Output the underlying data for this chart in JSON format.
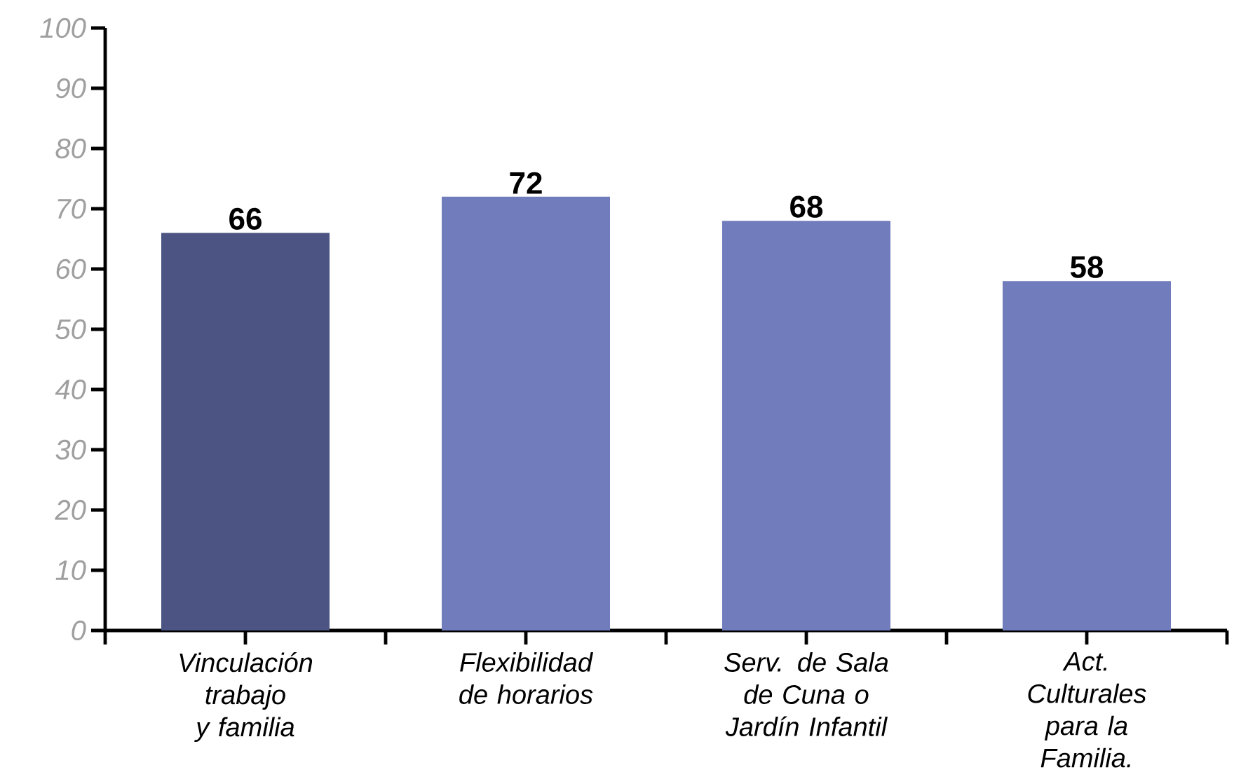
{
  "chart_data": {
    "type": "bar",
    "categories": [
      "Vinculación trabajo y familia",
      "Flexibilidad de horarios",
      "Serv. de Sala de Cuna o Jardín Infantil",
      "Act. Culturales para la Familia."
    ],
    "values": [
      66,
      72,
      68,
      58
    ],
    "data_labels": true,
    "colors": [
      "#4b5482",
      "#717cbd",
      "#717cbd",
      "#717cbd"
    ],
    "ylim": [
      0,
      100
    ],
    "yticks": [
      0,
      10,
      20,
      30,
      40,
      50,
      60,
      70,
      80,
      90,
      100
    ]
  }
}
